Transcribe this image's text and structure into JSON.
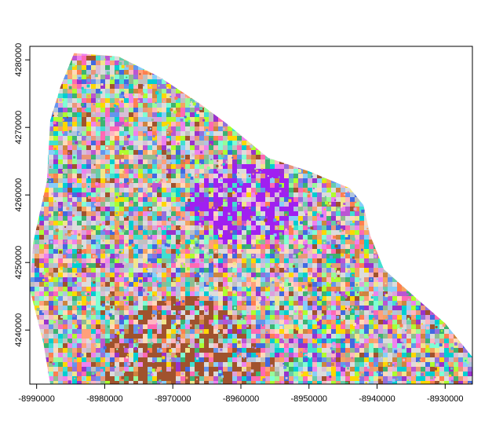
{
  "chart_data": {
    "type": "raster",
    "title": "",
    "xlabel": "",
    "ylabel": "",
    "xlim": [
      -8991000,
      -8926000
    ],
    "ylim": [
      4232000,
      4282000
    ],
    "x_ticks": [
      {
        "value": -8990000,
        "label": "-8990000"
      },
      {
        "value": -8980000,
        "label": "-8980000"
      },
      {
        "value": -8970000,
        "label": "-8970000"
      },
      {
        "value": -8960000,
        "label": "-8960000"
      },
      {
        "value": -8950000,
        "label": "-8950000"
      },
      {
        "value": -8940000,
        "label": "-8940000"
      },
      {
        "value": -8930000,
        "label": "-8930000"
      }
    ],
    "y_ticks": [
      {
        "value": 4240000,
        "label": "4240000"
      },
      {
        "value": 4250000,
        "label": "4250000"
      },
      {
        "value": 4260000,
        "label": "4260000"
      },
      {
        "value": 4270000,
        "label": "4270000"
      },
      {
        "value": 4280000,
        "label": "4280000"
      }
    ],
    "raster_extent_outline": [
      [
        -8984500,
        4281000
      ],
      [
        -8978000,
        4280500
      ],
      [
        -8972000,
        4277500
      ],
      [
        -8966000,
        4273500
      ],
      [
        -8962000,
        4270500
      ],
      [
        -8956000,
        4265500
      ],
      [
        -8950000,
        4263500
      ],
      [
        -8944000,
        4261000
      ],
      [
        -8942000,
        4258500
      ],
      [
        -8941000,
        4254000
      ],
      [
        -8939000,
        4249000
      ],
      [
        -8934000,
        4244500
      ],
      [
        -8930000,
        4241000
      ],
      [
        -8926000,
        4236000
      ],
      [
        -8926000,
        4232000
      ],
      [
        -8988000,
        4232000
      ],
      [
        -8989000,
        4238000
      ],
      [
        -8991000,
        4246000
      ],
      [
        -8990500,
        4253000
      ],
      [
        -8988500,
        4262000
      ],
      [
        -8988000,
        4271000
      ],
      [
        -8986500,
        4276000
      ]
    ],
    "palette": [
      "#ff69b4",
      "#9370db",
      "#40e0d0",
      "#98fb98",
      "#ffa07a",
      "#87cefa",
      "#dda0dd",
      "#f0e68c",
      "#b0c4de",
      "#a0522d",
      "#7fffd4",
      "#ba55d3",
      "#ffb6c1",
      "#3cb371",
      "#ffd700",
      "#6495ed",
      "#cd853f",
      "#e9967a",
      "#00ced1",
      "#adff2f",
      "#d8bfd8",
      "#9932cc",
      "#66cdaa",
      "#f4a460",
      "#c0c0c0",
      "#ee82ee",
      "#8fbc8f",
      "#ffdab9",
      "#4169e1",
      "#ff7f50"
    ],
    "dominant_colors": {
      "center_purple": "#a020f0",
      "south_brown": "#a0522d",
      "edge_light": "#dcdcdc"
    },
    "grid": false,
    "legend": "none"
  }
}
